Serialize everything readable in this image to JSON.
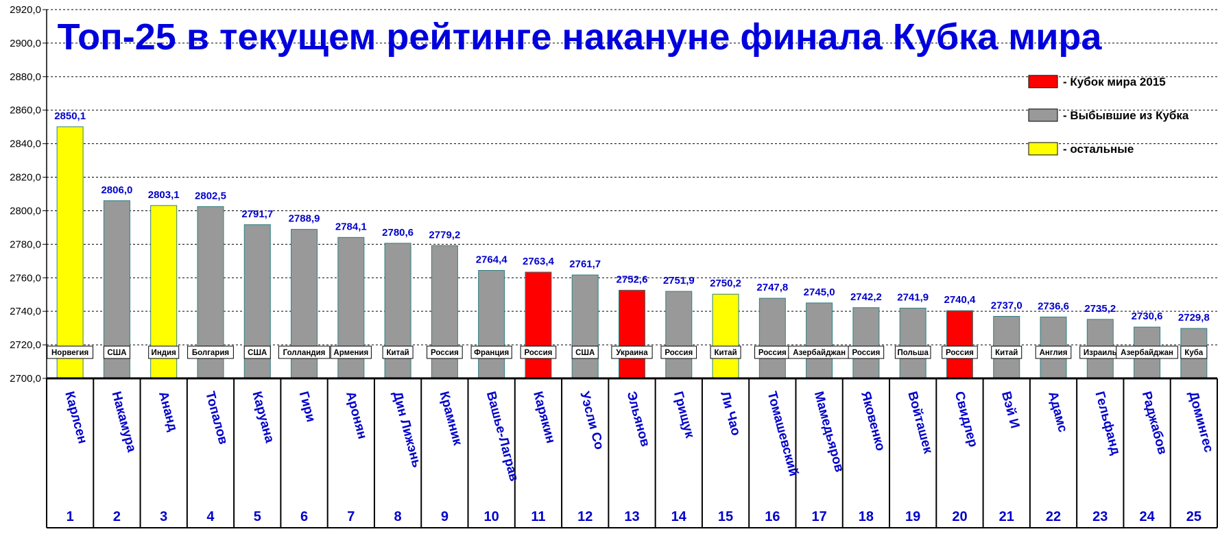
{
  "chart_data": {
    "type": "bar",
    "title": "Топ-25 в текущем рейтинге накануне финала Кубка мира",
    "ylim": [
      2700,
      2920
    ],
    "yticks": [
      "2700,0",
      "2720,0",
      "2740,0",
      "2760,0",
      "2780,0",
      "2800,0",
      "2820,0",
      "2840,0",
      "2860,0",
      "2880,0",
      "2900,0",
      "2920,0"
    ],
    "grid": true,
    "legend_position": "top-right",
    "legend": [
      {
        "label": "- Кубок мира 2015",
        "color": "#ff0000"
      },
      {
        "label": "- Выбывшие из Кубка",
        "color": "#999999"
      },
      {
        "label": "- остальные",
        "color": "#ffff00"
      }
    ],
    "categories": [
      "1",
      "2",
      "3",
      "4",
      "5",
      "6",
      "7",
      "8",
      "9",
      "10",
      "11",
      "12",
      "13",
      "14",
      "15",
      "16",
      "17",
      "18",
      "19",
      "20",
      "21",
      "22",
      "23",
      "24",
      "25"
    ],
    "players": [
      "Карлсен",
      "Накамура",
      "Ананд",
      "Топалов",
      "Каруана",
      "Гири",
      "Аронян",
      "Дин Лижэнь",
      "Крамник",
      "Вашье-Лаграв",
      "Карякин",
      "Уэсли Со",
      "Эльянов",
      "Грищук",
      "Ли Чао",
      "Томашевский",
      "Мамедьяров",
      "Яковенко",
      "Войташек",
      "Свидлер",
      "Вэй И",
      "Адамс",
      "Гельфанд",
      "Раджабов",
      "Домингес"
    ],
    "countries": [
      "Норвегия",
      "США",
      "Индия",
      "Болгария",
      "США",
      "Голландия",
      "Армения",
      "Китай",
      "Россия",
      "Франция",
      "Россия",
      "США",
      "Украина",
      "Россия",
      "Китай",
      "Россия",
      "Азербайджан",
      "Россия",
      "Польша",
      "Россия",
      "Китай",
      "Англия",
      "Израиль",
      "Азербайджан",
      "Куба"
    ],
    "values": [
      2850.1,
      2806.0,
      2803.1,
      2802.5,
      2791.7,
      2788.9,
      2784.1,
      2780.6,
      2779.2,
      2764.4,
      2763.4,
      2761.7,
      2752.6,
      2751.9,
      2750.2,
      2747.8,
      2745.0,
      2742.2,
      2741.9,
      2740.4,
      2737.0,
      2736.6,
      2735.2,
      2730.6,
      2729.8
    ],
    "value_labels": [
      "2850,1",
      "2806,0",
      "2803,1",
      "2802,5",
      "2791,7",
      "2788,9",
      "2784,1",
      "2780,6",
      "2779,2",
      "2764,4",
      "2763,4",
      "2761,7",
      "2752,6",
      "2751,9",
      "2750,2",
      "2747,8",
      "2745,0",
      "2742,2",
      "2741,9",
      "2740,4",
      "2737,0",
      "2736,6",
      "2735,2",
      "2730,6",
      "2729,8"
    ],
    "groups": [
      2,
      1,
      2,
      1,
      1,
      1,
      1,
      1,
      1,
      1,
      0,
      1,
      0,
      1,
      2,
      1,
      1,
      1,
      1,
      0,
      1,
      1,
      1,
      1,
      1
    ]
  }
}
